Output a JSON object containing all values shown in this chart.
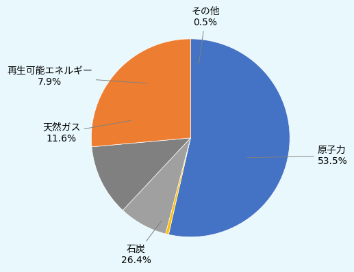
{
  "labels": [
    "原子力",
    "石炭",
    "天然ガス",
    "再生可能エネルギー",
    "その他"
  ],
  "values": [
    53.5,
    26.4,
    11.6,
    7.9,
    0.5
  ],
  "colors": [
    "#4472C4",
    "#ED7D31",
    "#808080",
    "#A9A9A9",
    "#FFC000"
  ],
  "other_color": "#92D050",
  "background_color": "#E8F8FC",
  "startangle": 90,
  "font_size": 10
}
